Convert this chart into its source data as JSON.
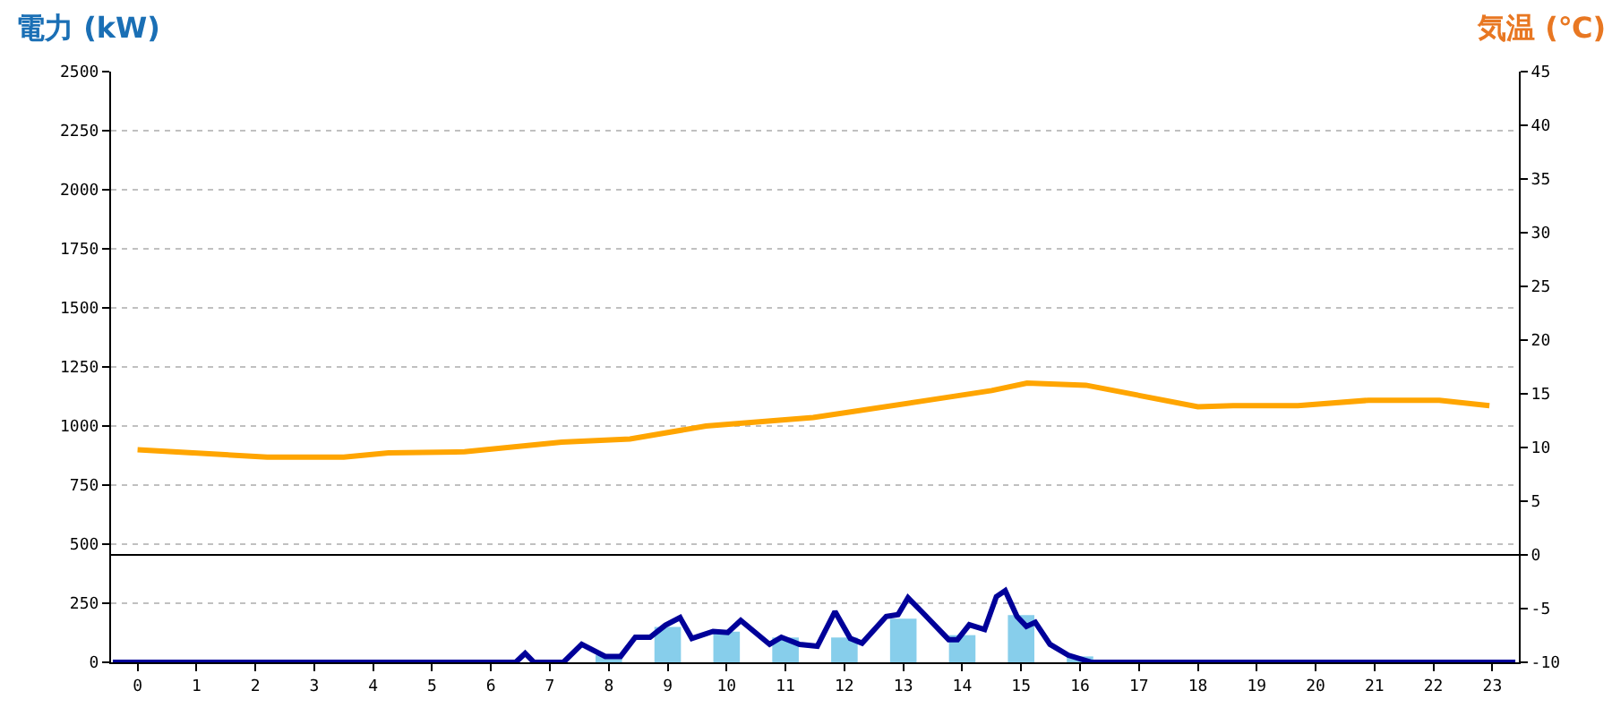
{
  "chart_data": {
    "type": "bar",
    "ylabel": "電力 (kW)",
    "y2label": "気温 (℃)",
    "xlim": [
      -0.45,
      23.45
    ],
    "xticks": [
      0,
      1,
      2,
      3,
      4,
      5,
      6,
      7,
      8,
      9,
      10,
      11,
      12,
      13,
      14,
      15,
      16,
      17,
      18,
      19,
      20,
      21,
      22,
      23
    ],
    "ylim": [
      0,
      2500
    ],
    "yticks": [
      0,
      250,
      500,
      750,
      1000,
      1250,
      1500,
      1750,
      2000,
      2250,
      2500
    ],
    "y2lim": [
      -10,
      45
    ],
    "y2ticks": [
      -10,
      -5,
      0,
      5,
      10,
      15,
      20,
      25,
      30,
      35,
      40,
      45
    ],
    "grid": "y",
    "ref_lines": [
      {
        "axis": "y2",
        "value": 0,
        "color": "#000000",
        "line_style": "solid"
      }
    ],
    "series": [
      {
        "color": "#87ceeb",
        "x": [
          0,
          1,
          2,
          3,
          4,
          5,
          6,
          7,
          8,
          9,
          10,
          11,
          12,
          13,
          14,
          15,
          16,
          17,
          18,
          19,
          20,
          21,
          22,
          23
        ],
        "values": [
          0,
          0,
          0,
          0,
          0,
          0,
          0,
          0,
          30,
          150,
          130,
          105,
          105,
          185,
          115,
          200,
          25,
          0,
          0,
          0,
          0,
          0,
          0,
          0
        ]
      },
      {
        "type": "line",
        "color": "#000099",
        "marker": "none",
        "line_style": "solid",
        "x": [
          -0.42,
          6.42,
          6.58,
          6.73,
          7.23,
          7.54,
          7.94,
          8.2,
          8.45,
          8.7,
          8.96,
          9.21,
          9.41,
          9.77,
          10.02,
          10.24,
          10.73,
          10.93,
          11.24,
          11.54,
          11.84,
          12.1,
          12.3,
          12.71,
          12.91,
          13.08,
          13.31,
          13.77,
          13.92,
          14.12,
          14.38,
          14.58,
          14.73,
          14.93,
          15.09,
          15.24,
          15.49,
          15.8,
          16.2,
          23.39
        ],
        "values": [
          0,
          0,
          38,
          0,
          0,
          76,
          25,
          25,
          106,
          106,
          157,
          189,
          101,
          131,
          126,
          177,
          76,
          106,
          76,
          68,
          215,
          101,
          81,
          194,
          202,
          273,
          215,
          96,
          96,
          159,
          139,
          278,
          303,
          194,
          152,
          169,
          76,
          30,
          0,
          0
        ]
      },
      {
        "type": "line",
        "axis": "y2",
        "color": "#ffa500",
        "marker": "none",
        "line_style": "solid",
        "x": [
          0,
          2.2,
          3.5,
          4.26,
          5.55,
          7.2,
          8.36,
          9.65,
          11.47,
          13.3,
          14.5,
          15.1,
          16.1,
          18.0,
          18.6,
          19.7,
          20.9,
          22.1,
          22.95
        ],
        "values": [
          9.8,
          9.1,
          9.1,
          9.5,
          9.6,
          10.5,
          10.8,
          12.0,
          12.8,
          14.3,
          15.3,
          16.0,
          15.8,
          13.8,
          13.9,
          13.9,
          14.4,
          14.4,
          13.9
        ]
      }
    ]
  }
}
